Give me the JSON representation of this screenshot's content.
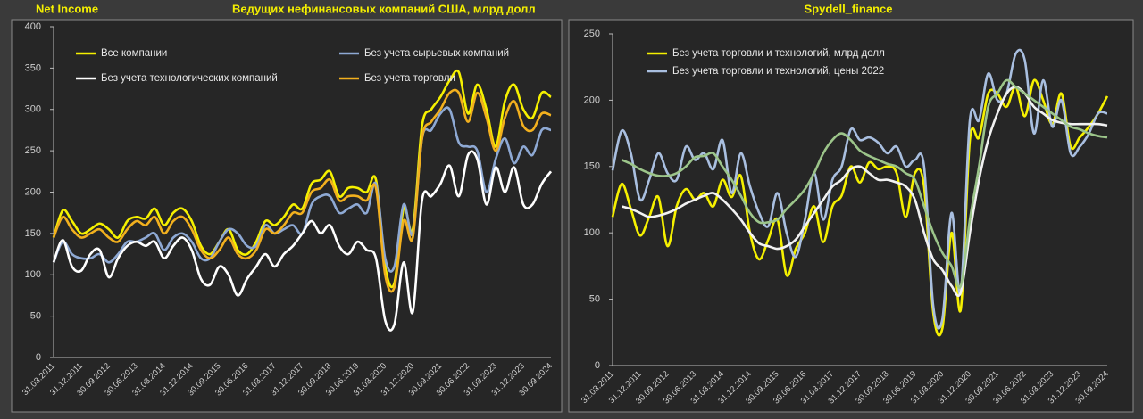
{
  "chart_data": [
    {
      "type": "line",
      "subtitle": "Net Income",
      "title": "Ведущих нефинансовых компаний США, млрд долл",
      "categories": [
        "31.03.2011",
        null,
        null,
        "31.12.2011",
        null,
        null,
        "30.09.2012",
        null,
        null,
        "30.06.2013",
        null,
        null,
        "31.03.2014",
        null,
        null,
        "31.12.2014",
        null,
        null,
        "30.09.2015",
        null,
        null,
        "30.06.2016",
        null,
        null,
        "31.03.2017",
        null,
        null,
        "31.12.2017",
        null,
        null,
        "30.09.2018",
        null,
        null,
        "30.06.2019",
        null,
        null,
        "31.03.2020",
        null,
        null,
        "31.12.2020",
        null,
        null,
        "30.09.2021",
        null,
        null,
        "30.06.2022",
        null,
        null,
        "31.03.2023",
        null,
        null,
        "31.12.2023",
        null,
        null,
        "30.09.2024"
      ],
      "series": [
        {
          "name": "Все компании",
          "color": "#f5f000",
          "values": [
            145,
            178,
            165,
            150,
            155,
            162,
            155,
            145,
            165,
            170,
            168,
            180,
            160,
            175,
            180,
            165,
            135,
            125,
            140,
            155,
            130,
            125,
            140,
            165,
            160,
            170,
            185,
            180,
            210,
            215,
            225,
            195,
            205,
            205,
            200,
            215,
            110,
            90,
            180,
            155,
            280,
            300,
            315,
            335,
            345,
            295,
            330,
            300,
            255,
            310,
            330,
            300,
            290,
            320,
            315
          ]
        },
        {
          "name": "Без учета сырьевых компаний",
          "color": "#8ea9d4",
          "values": [
            115,
            140,
            125,
            120,
            120,
            125,
            115,
            125,
            140,
            140,
            145,
            150,
            130,
            145,
            150,
            140,
            120,
            120,
            140,
            155,
            150,
            135,
            135,
            160,
            150,
            155,
            160,
            150,
            185,
            195,
            195,
            175,
            180,
            185,
            175,
            210,
            120,
            110,
            185,
            150,
            265,
            275,
            295,
            300,
            260,
            255,
            250,
            200,
            240,
            265,
            235,
            255,
            245,
            275,
            275
          ]
        },
        {
          "name": "Без учета технологических компаний",
          "color": "#ffffff",
          "values": [
            115,
            142,
            110,
            105,
            125,
            130,
            97,
            120,
            135,
            140,
            135,
            140,
            120,
            135,
            145,
            130,
            95,
            88,
            110,
            100,
            75,
            95,
            110,
            125,
            110,
            125,
            135,
            150,
            165,
            150,
            160,
            135,
            125,
            140,
            130,
            120,
            45,
            40,
            115,
            55,
            190,
            195,
            210,
            232,
            195,
            245,
            240,
            185,
            230,
            200,
            230,
            185,
            185,
            210,
            225
          ]
        },
        {
          "name": "Без учета торговли",
          "color": "#f2b01e",
          "values": [
            145,
            170,
            155,
            145,
            150,
            155,
            145,
            140,
            155,
            165,
            160,
            170,
            150,
            165,
            170,
            155,
            130,
            120,
            130,
            145,
            125,
            120,
            130,
            155,
            150,
            160,
            175,
            175,
            200,
            205,
            215,
            190,
            195,
            195,
            190,
            205,
            100,
            85,
            165,
            145,
            265,
            285,
            300,
            320,
            320,
            285,
            320,
            290,
            250,
            290,
            310,
            280,
            275,
            295,
            293
          ]
        }
      ],
      "ylim": [
        0,
        400
      ],
      "yticks": [
        0,
        50,
        100,
        150,
        200,
        250,
        300,
        350,
        400
      ]
    },
    {
      "type": "line",
      "title": "Spydell_finance",
      "categories": [
        "31.03.2011",
        null,
        null,
        "31.12.2011",
        null,
        null,
        "30.09.2012",
        null,
        null,
        "30.06.2013",
        null,
        null,
        "31.03.2014",
        null,
        null,
        "31.12.2014",
        null,
        null,
        "30.09.2015",
        null,
        null,
        "30.06.2016",
        null,
        null,
        "31.03.2017",
        null,
        null,
        "31.12.2017",
        null,
        null,
        "30.09.2018",
        null,
        null,
        "30.06.2019",
        null,
        null,
        "31.03.2020",
        null,
        null,
        "31.12.2020",
        null,
        null,
        "30.09.2021",
        null,
        null,
        "30.06.2022",
        null,
        null,
        "31.03.2023",
        null,
        null,
        "31.12.2023",
        null,
        null,
        "30.09.2024"
      ],
      "series": [
        {
          "name": "Без учета торговли и технологий, млрд долл",
          "color": "#f5f000",
          "values": [
            112,
            137,
            118,
            98,
            112,
            127,
            90,
            120,
            133,
            125,
            130,
            120,
            140,
            127,
            143,
            100,
            80,
            95,
            110,
            68,
            88,
            100,
            120,
            93,
            120,
            128,
            150,
            138,
            153,
            148,
            150,
            145,
            112,
            145,
            135,
            40,
            28,
            100,
            42,
            170,
            172,
            205,
            205,
            195,
            210,
            188,
            215,
            200,
            182,
            205,
            165,
            172,
            180,
            190,
            203
          ]
        },
        {
          "name": "Без учета торговли и технологий, цены 2022",
          "color": "#a9bfe0",
          "values": [
            147,
            177,
            160,
            125,
            140,
            160,
            145,
            140,
            165,
            155,
            160,
            148,
            170,
            130,
            160,
            135,
            115,
            105,
            130,
            100,
            82,
            110,
            145,
            110,
            140,
            150,
            178,
            170,
            172,
            168,
            160,
            165,
            150,
            155,
            150,
            45,
            35,
            115,
            55,
            185,
            185,
            220,
            200,
            205,
            235,
            230,
            175,
            215,
            180,
            200,
            160,
            165,
            175,
            190,
            190
          ]
        },
        {
          "color": "#f2f2f2",
          "values": [
            null,
            120,
            118,
            115,
            112,
            113,
            115,
            118,
            122,
            125,
            128,
            130,
            125,
            118,
            110,
            100,
            92,
            90,
            88,
            90,
            95,
            105,
            115,
            125,
            135,
            140,
            148,
            150,
            145,
            140,
            140,
            138,
            135,
            125,
            100,
            80,
            72,
            60,
            55,
            100,
            140,
            170,
            190,
            205,
            210,
            205,
            195,
            190,
            185,
            183,
            182,
            182,
            182,
            182,
            181
          ]
        },
        {
          "color": "#9cc58a",
          "values": [
            null,
            155,
            152,
            148,
            145,
            143,
            143,
            145,
            150,
            157,
            158,
            160,
            150,
            140,
            128,
            115,
            108,
            108,
            110,
            118,
            125,
            133,
            145,
            160,
            170,
            175,
            170,
            162,
            158,
            155,
            152,
            150,
            145,
            140,
            120,
            100,
            85,
            75,
            60,
            110,
            150,
            195,
            205,
            215,
            210,
            205,
            200,
            195,
            190,
            185,
            180,
            178,
            175,
            173,
            172
          ]
        }
      ],
      "ylim": [
        0,
        250
      ],
      "yticks": [
        0,
        50,
        100,
        150,
        200,
        250
      ]
    }
  ]
}
